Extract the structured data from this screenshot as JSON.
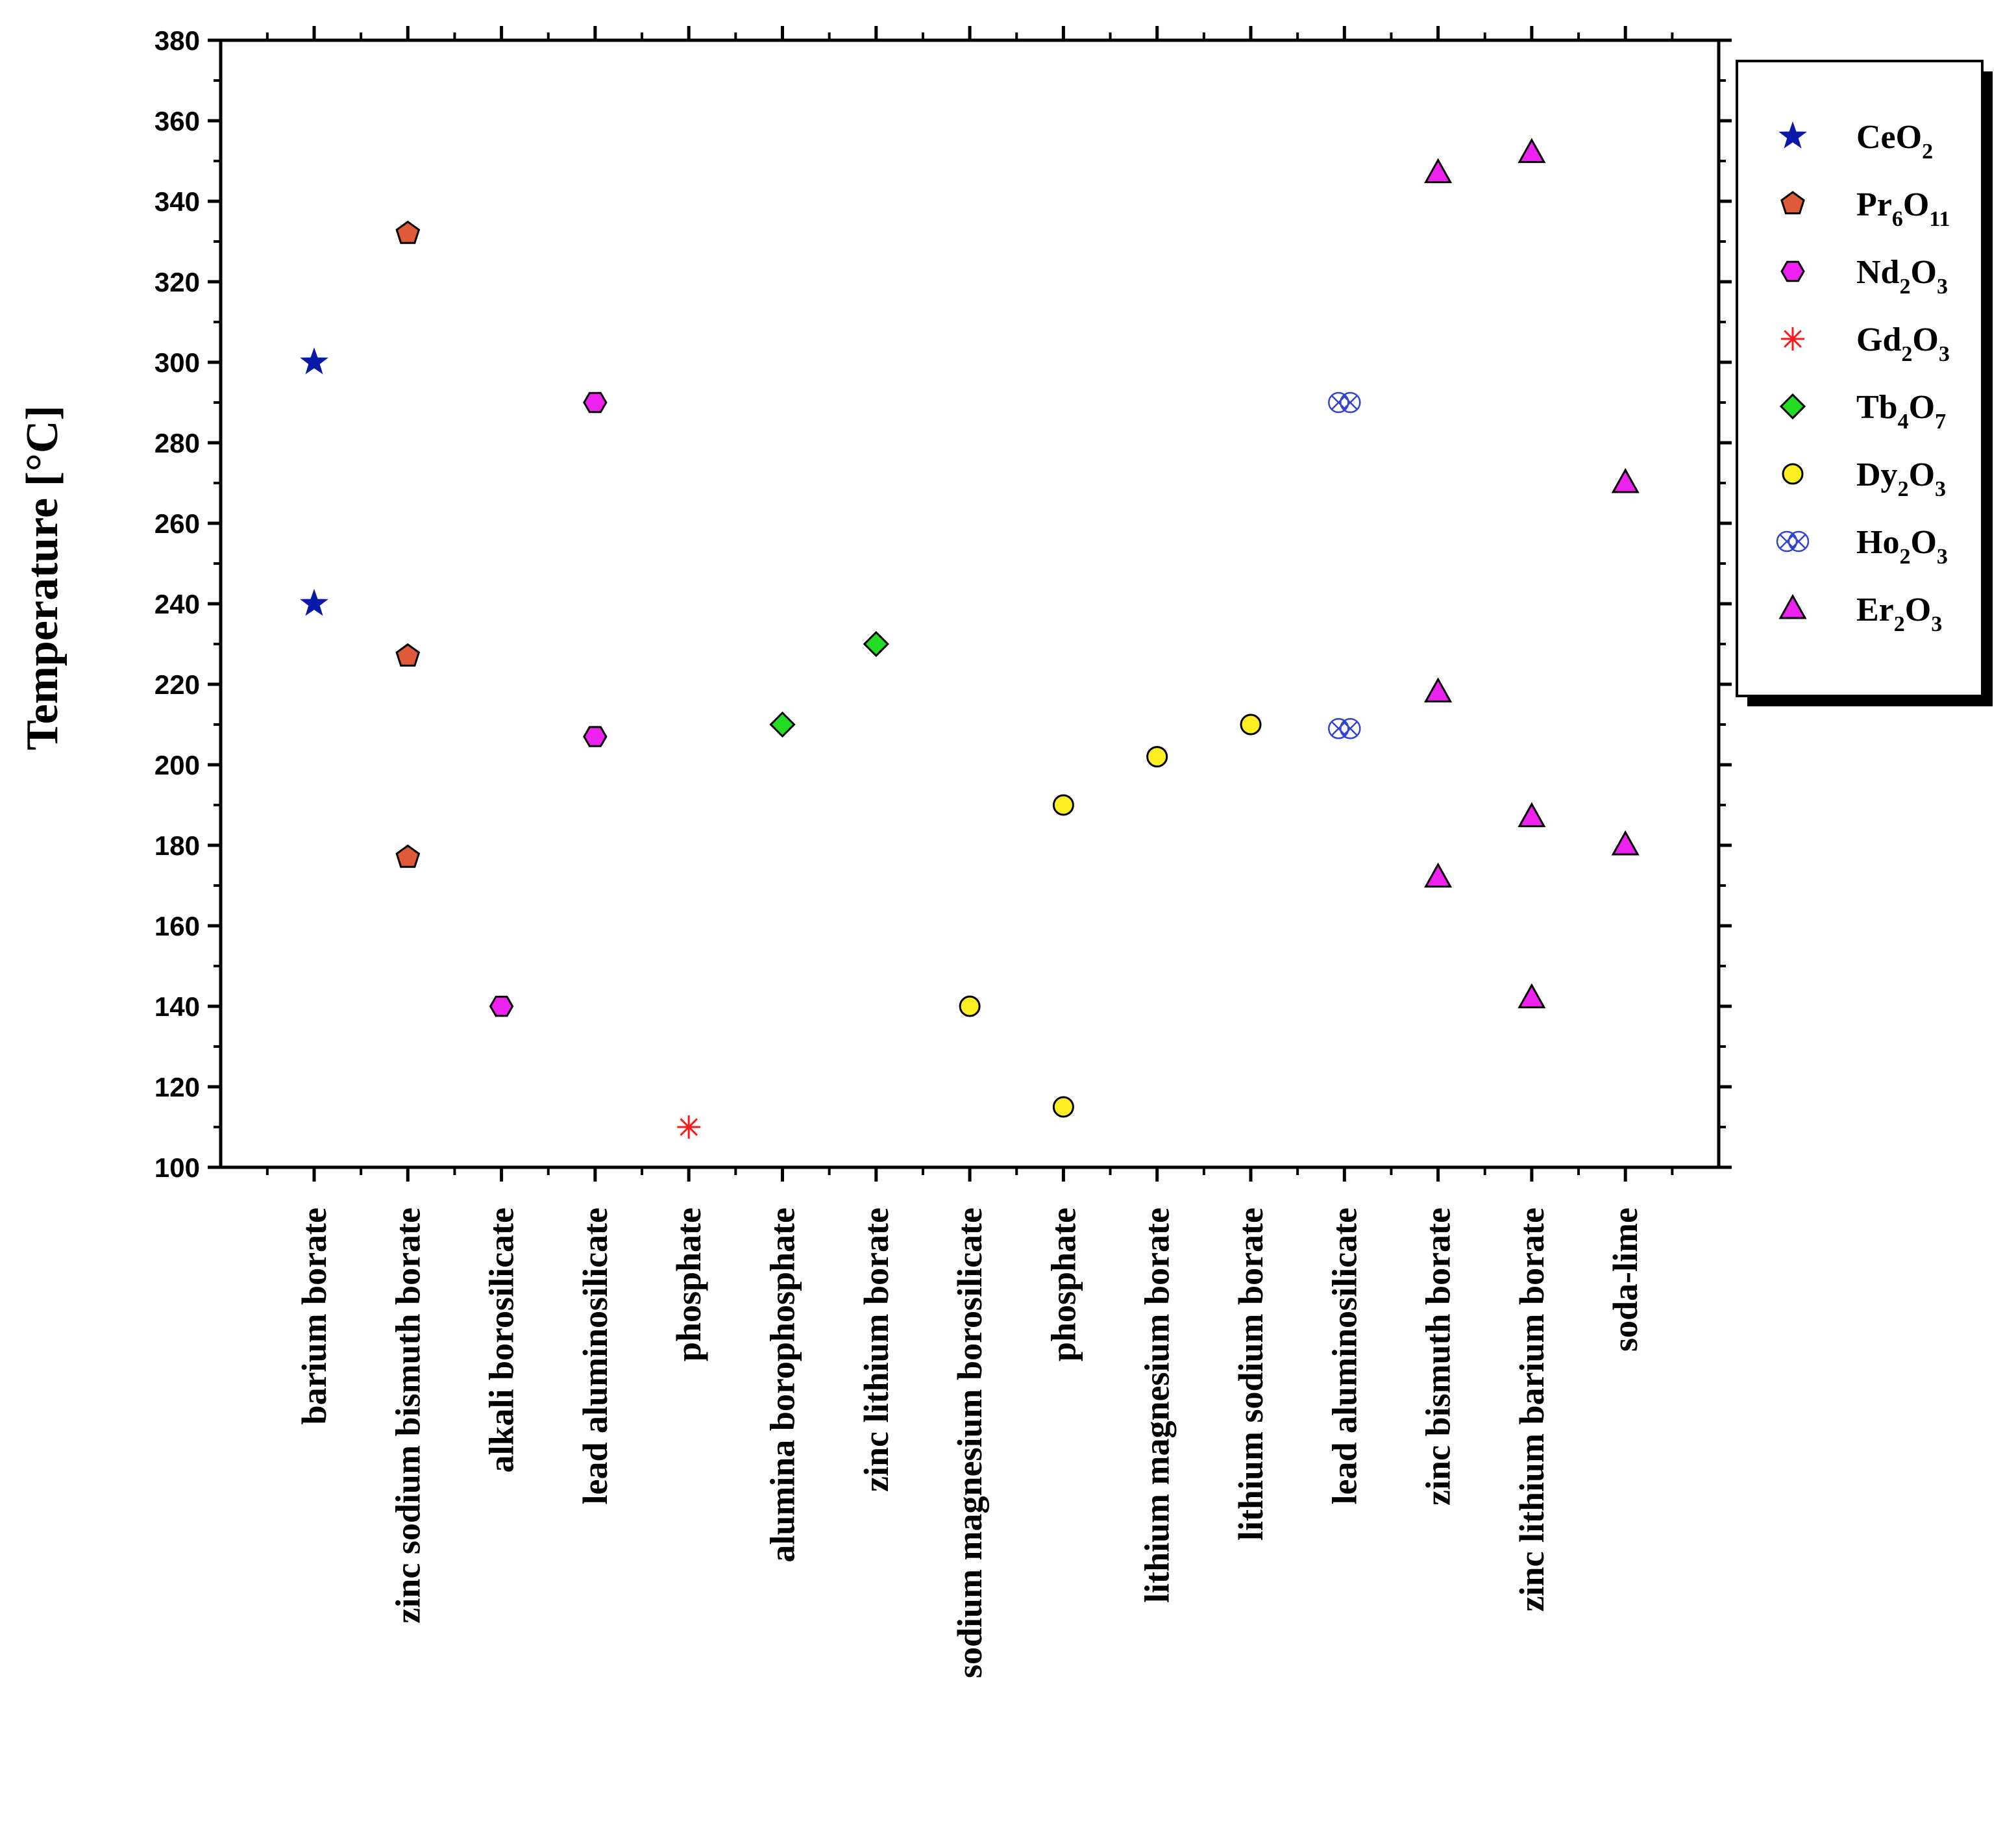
{
  "chart_data": {
    "type": "scatter",
    "title": "",
    "xlabel": "",
    "ylabel": "Temperature [°C]",
    "ylim": [
      100,
      380
    ],
    "y_ticks": [
      100,
      120,
      140,
      160,
      180,
      200,
      220,
      240,
      260,
      280,
      300,
      320,
      340,
      360,
      380
    ],
    "categories": [
      "barium borate",
      "zinc sodium bismuth borate",
      "alkali borosilicate",
      "lead aluminosilicate",
      "phosphate",
      "alumina borophosphate",
      "zinc lithium borate",
      "sodium magnesium borosilicate",
      "phosphate",
      "lithium magnesium borate",
      "lithium sodium borate",
      "lead aluminosilicate",
      "zinc bismuth borate",
      "zinc lithium barium borate",
      "soda-lime"
    ],
    "legend_position": "right",
    "series": [
      {
        "name": "CeO2",
        "base": "CeO",
        "sub": "2",
        "marker": "star",
        "color": "#0a1aa8",
        "points": [
          {
            "cat": 0,
            "y": 300
          },
          {
            "cat": 0,
            "y": 240
          }
        ]
      },
      {
        "name": "Pr6O11",
        "base": "Pr",
        "sub": "6",
        "base2": "O",
        "sub2": "11",
        "marker": "pentagon",
        "color": "#e05a3a",
        "points": [
          {
            "cat": 1,
            "y": 332
          },
          {
            "cat": 1,
            "y": 227
          },
          {
            "cat": 1,
            "y": 177
          }
        ]
      },
      {
        "name": "Nd2O3",
        "base": "Nd",
        "sub": "2",
        "base2": "O",
        "sub2": "3",
        "marker": "hexagon",
        "color": "#ee22ee",
        "points": [
          {
            "cat": 2,
            "y": 140
          },
          {
            "cat": 3,
            "y": 290
          },
          {
            "cat": 3,
            "y": 207
          }
        ]
      },
      {
        "name": "Gd2O3",
        "base": "Gd",
        "sub": "2",
        "base2": "O",
        "sub2": "3",
        "marker": "asterisk",
        "color": "#ff1a1a",
        "points": [
          {
            "cat": 4,
            "y": 110
          }
        ]
      },
      {
        "name": "Tb4O7",
        "base": "Tb",
        "sub": "4",
        "base2": "O",
        "sub2": "7",
        "marker": "diamond",
        "color": "#22dd22",
        "points": [
          {
            "cat": 5,
            "y": 210
          },
          {
            "cat": 6,
            "y": 230
          }
        ]
      },
      {
        "name": "Dy2O3",
        "base": "Dy",
        "sub": "2",
        "base2": "O",
        "sub2": "3",
        "marker": "circle",
        "color": "#ffee22",
        "points": [
          {
            "cat": 7,
            "y": 140
          },
          {
            "cat": 8,
            "y": 190
          },
          {
            "cat": 8,
            "y": 115
          },
          {
            "cat": 9,
            "y": 202
          },
          {
            "cat": 10,
            "y": 210
          }
        ]
      },
      {
        "name": "Ho2O3",
        "base": "Ho",
        "sub": "2",
        "base2": "O",
        "sub2": "3",
        "marker": "crossed-circle",
        "color": "#3344cc",
        "points": [
          {
            "cat": 11,
            "y": 290
          },
          {
            "cat": 11,
            "y": 209
          }
        ]
      },
      {
        "name": "Er2O3",
        "base": "Er",
        "sub": "2",
        "base2": "O",
        "sub2": "3",
        "marker": "triangle",
        "color": "#ee22ee",
        "points": [
          {
            "cat": 12,
            "y": 347
          },
          {
            "cat": 12,
            "y": 218
          },
          {
            "cat": 12,
            "y": 172
          },
          {
            "cat": 13,
            "y": 352
          },
          {
            "cat": 13,
            "y": 187
          },
          {
            "cat": 13,
            "y": 142
          },
          {
            "cat": 14,
            "y": 270
          },
          {
            "cat": 14,
            "y": 180
          }
        ]
      }
    ]
  }
}
